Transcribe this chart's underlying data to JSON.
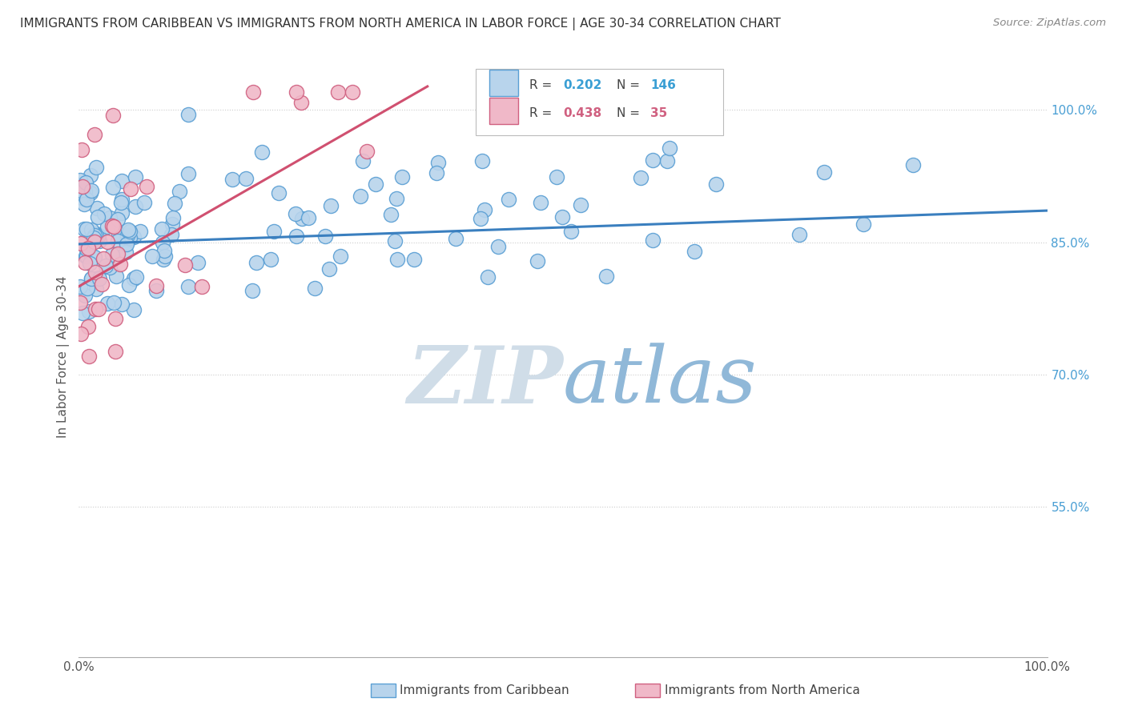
{
  "title": "IMMIGRANTS FROM CARIBBEAN VS IMMIGRANTS FROM NORTH AMERICA IN LABOR FORCE | AGE 30-34 CORRELATION CHART",
  "source": "Source: ZipAtlas.com",
  "ylabel": "In Labor Force | Age 30-34",
  "xmin": 0.0,
  "xmax": 1.0,
  "ymin": 0.38,
  "ymax": 1.06,
  "ytick_labels": [
    "55.0%",
    "70.0%",
    "85.0%",
    "100.0%"
  ],
  "ytick_values": [
    0.55,
    0.7,
    0.85,
    1.0
  ],
  "R_caribbean": 0.202,
  "N_caribbean": 146,
  "R_north_america": 0.438,
  "N_north_america": 35,
  "blue_line_color": "#3a7fbf",
  "pink_line_color": "#d05070",
  "dot_blue_face": "#b8d4ec",
  "dot_blue_edge": "#5a9fd4",
  "dot_pink_face": "#f0b8c8",
  "dot_pink_edge": "#d06080",
  "watermark_zip_color": "#d0dde8",
  "watermark_atlas_color": "#90b8d8",
  "background_color": "#ffffff",
  "grid_color": "#cccccc",
  "title_color": "#333333",
  "axis_label_color": "#555555",
  "tick_label_color_right": "#4a9fd4",
  "legend_blue_R_color": "#3a9fd4",
  "legend_blue_N_color": "#3a9fd4",
  "legend_pink_R_color": "#d06080",
  "legend_pink_N_color": "#d06080",
  "bottom_legend_label1": "Immigrants from Caribbean",
  "bottom_legend_label2": "Immigrants from North America"
}
